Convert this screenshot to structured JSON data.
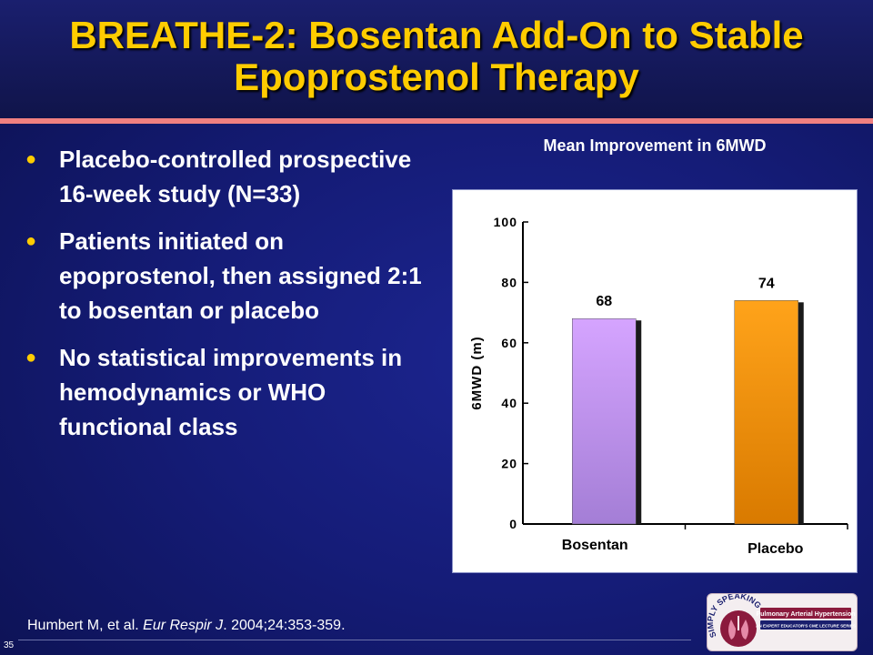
{
  "slide": {
    "title_line1": "BREATHE-2: Bosentan Add-On to Stable",
    "title_line2": "Epoprostenol Therapy",
    "page_number": "35",
    "colors": {
      "title": "#ffcc00",
      "rule": "#f08080",
      "background": "#151c78"
    }
  },
  "bullets": [
    {
      "text": "Placebo-controlled prospective 16-week study (N=33)"
    },
    {
      "text": "Patients initiated on epoprostenol, then assigned 2:1 to bosentan or placebo"
    },
    {
      "text": "No statistical improvements in hemodynamics or WHO functional class"
    }
  ],
  "citation": {
    "authors": "Humbert M, et al. ",
    "journal": "Eur Respir J",
    "details": ". 2004;24:353-359."
  },
  "logo": {
    "arc_text": "SIMPLY SPEAKING",
    "line1": "Pulmonary Arterial Hypertension",
    "line2": "AN EXPERT EDUCATOR'S CME LECTURE SERIES"
  },
  "chart_data": {
    "type": "bar",
    "title": "Mean Improvement in 6MWD",
    "ylabel": "6MWD (m)",
    "xlabel": "",
    "ylim": [
      0,
      100
    ],
    "yticks": [
      "0",
      "20",
      "40",
      "60",
      "80",
      "100"
    ],
    "categories": [
      "Bosentan",
      "Placebo"
    ],
    "values": [
      68,
      74
    ],
    "data_labels": [
      "68",
      "74"
    ],
    "colors": [
      "#c896f0",
      "#ff9900"
    ],
    "grid": false,
    "legend": "none"
  }
}
